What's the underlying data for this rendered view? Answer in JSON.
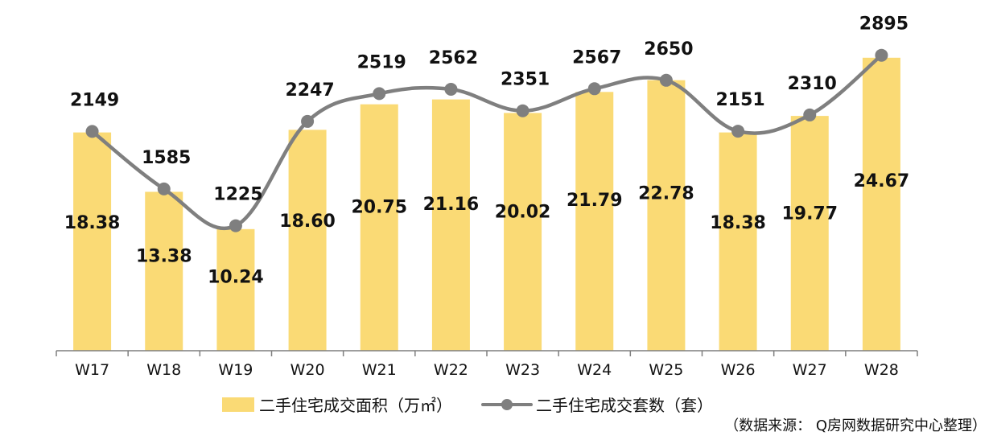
{
  "chart_data": {
    "type": "bar",
    "categories": [
      "W17",
      "W18",
      "W19",
      "W20",
      "W21",
      "W22",
      "W23",
      "W24",
      "W25",
      "W26",
      "W27",
      "W28"
    ],
    "series": [
      {
        "name": "二手住宅成交面积（万㎡）",
        "type": "bar",
        "axis": "left",
        "values": [
          18.38,
          13.38,
          10.24,
          18.6,
          20.75,
          21.16,
          20.02,
          21.79,
          22.78,
          18.38,
          19.77,
          24.67
        ],
        "labels": [
          "18.38",
          "13.38",
          "10.24",
          "18.60",
          "20.75",
          "21.16",
          "20.02",
          "21.79",
          "22.78",
          "18.38",
          "19.77",
          "24.67"
        ],
        "color": "#FADA75"
      },
      {
        "name": "二手住宅成交套数（套）",
        "type": "line",
        "axis": "right",
        "values": [
          2149,
          1585,
          1225,
          2247,
          2519,
          2562,
          2351,
          2567,
          2650,
          2151,
          2310,
          2895
        ],
        "labels": [
          "2149",
          "1585",
          "1225",
          "2247",
          "2519",
          "2562",
          "2351",
          "2567",
          "2650",
          "2151",
          "2310",
          "2895"
        ],
        "color": "#7F7F7F",
        "smooth": true
      }
    ],
    "ylim_left": [
      0,
      27.5
    ],
    "ylim_right": [
      0,
      3200
    ],
    "grid": false,
    "legend_position": "bottom",
    "source_note": "（数据来源： Q房网数据研究中心整理）"
  }
}
